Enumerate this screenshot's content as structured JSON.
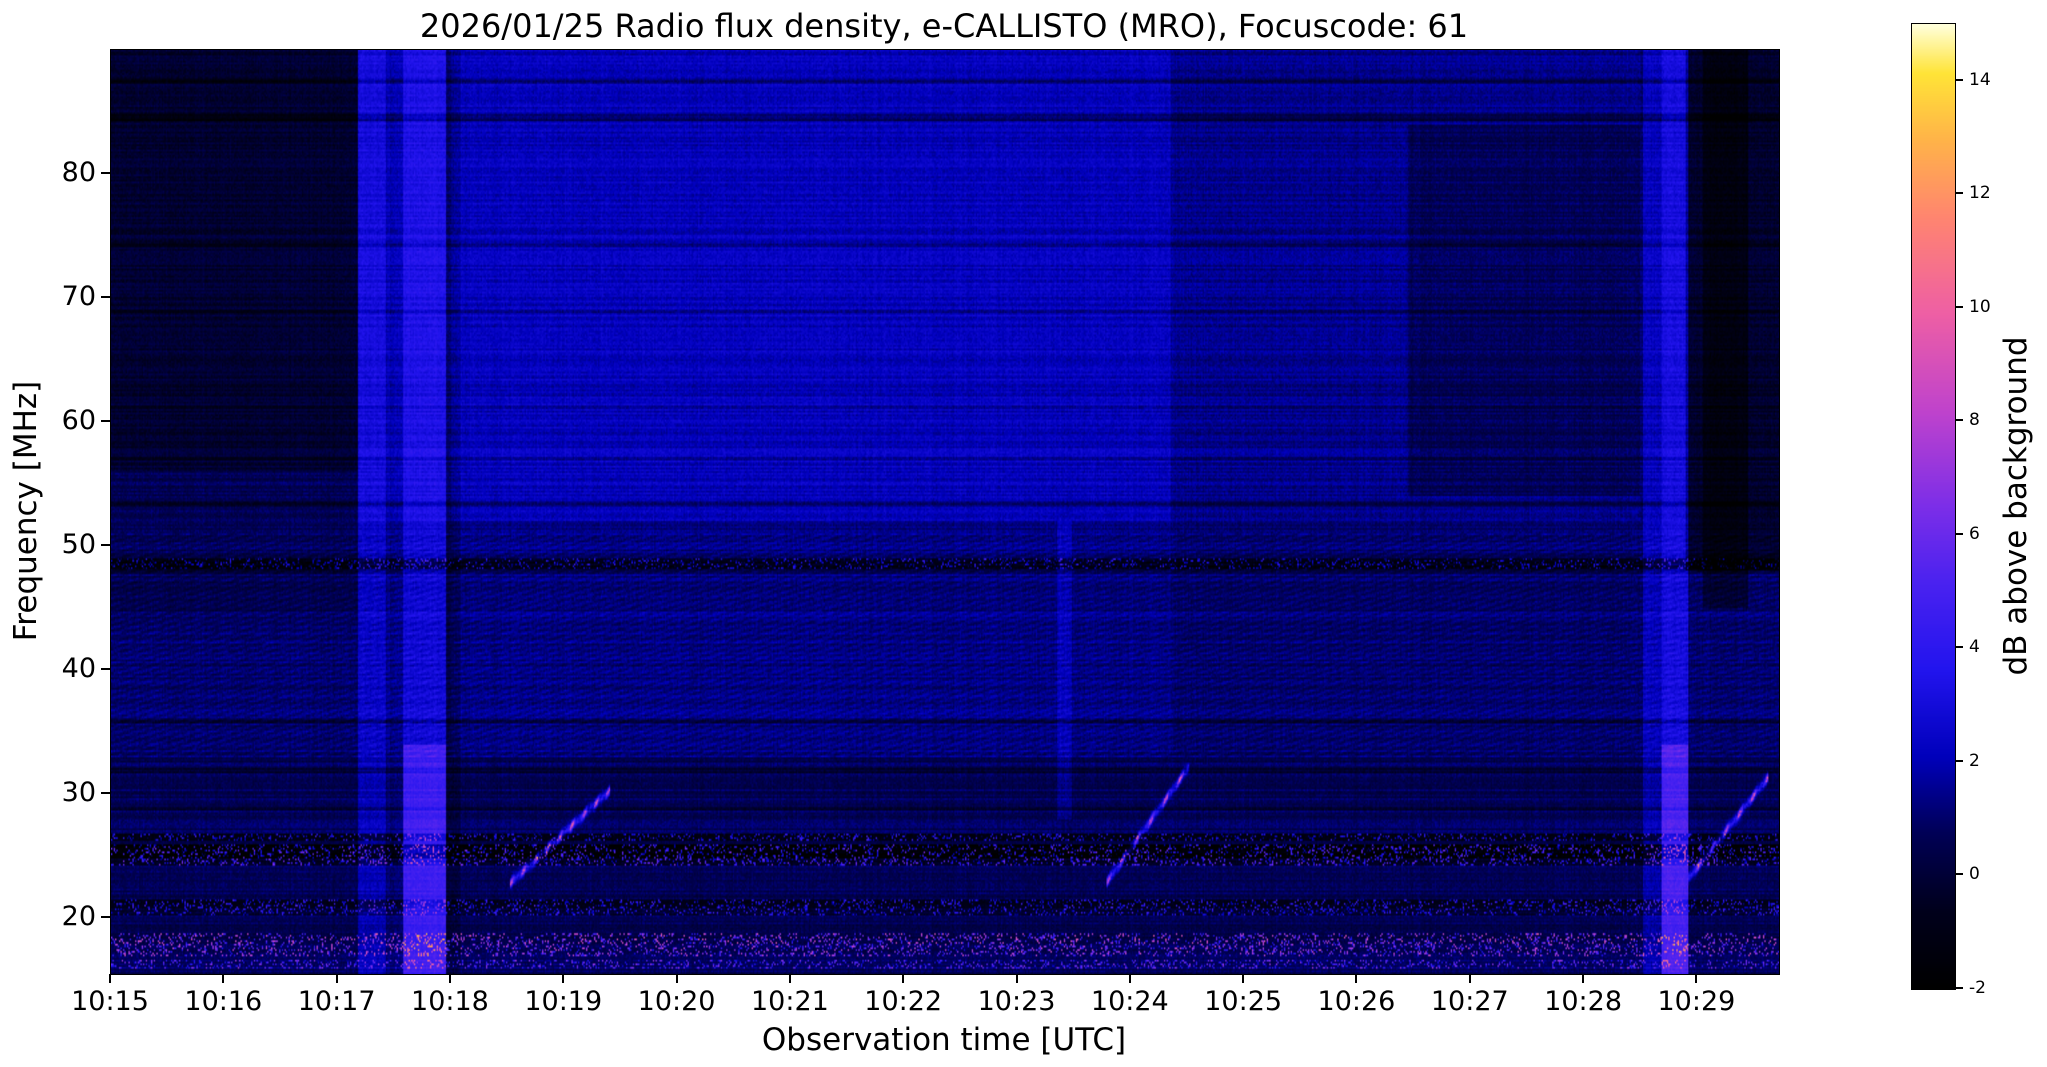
{
  "chart_data": {
    "type": "heatmap",
    "title": "2026/01/25  Radio flux density, e-CALLISTO (MRO), Focuscode: 61",
    "xlabel": "Observation time [UTC]",
    "ylabel": "Frequency [MHz]",
    "colorbar_label": "dB above background",
    "x_tick_labels": [
      "10:15",
      "10:16",
      "10:17",
      "10:18",
      "10:19",
      "10:20",
      "10:21",
      "10:22",
      "10:23",
      "10:24",
      "10:25",
      "10:26",
      "10:27",
      "10:28",
      "10:29"
    ],
    "y_tick_values": [
      80,
      70,
      60,
      50,
      40,
      30,
      20
    ],
    "colorbar_ticks": [
      14,
      12,
      10,
      8,
      6,
      4,
      2,
      0,
      -2
    ],
    "x_span_minutes": 14.72,
    "ylim": [
      15.5,
      90
    ],
    "value_range": [
      -2,
      15
    ],
    "base_level_db": 1.0,
    "colormap_stops": [
      [
        0.0,
        "#000000"
      ],
      [
        0.08,
        "#00001c"
      ],
      [
        0.16,
        "#000055"
      ],
      [
        0.24,
        "#0000bb"
      ],
      [
        0.33,
        "#2214ee"
      ],
      [
        0.42,
        "#4a22f0"
      ],
      [
        0.5,
        "#7c2ee8"
      ],
      [
        0.6,
        "#c043cc"
      ],
      [
        0.7,
        "#ee5fa5"
      ],
      [
        0.8,
        "#ff8570"
      ],
      [
        0.88,
        "#ffb349"
      ],
      [
        0.95,
        "#ffe437"
      ],
      [
        1.0,
        "#ffffd9"
      ]
    ],
    "regions": [
      {
        "t": [
          0,
          2.18
        ],
        "f": [
          56,
          90
        ],
        "dv": -1.15
      },
      {
        "t": [
          0,
          2.18
        ],
        "f": [
          44,
          56
        ],
        "dv": -0.35
      },
      {
        "t": [
          2.18,
          3.0
        ],
        "f": [
          52,
          90
        ],
        "dv": 0.6
      },
      {
        "t": [
          3.0,
          9.35
        ],
        "f": [
          52,
          90
        ],
        "dv": 1.15
      },
      {
        "t": [
          3.0,
          9.35
        ],
        "f": [
          33,
          52
        ],
        "dv": 0.3
      },
      {
        "t": [
          9.35,
          13.5
        ],
        "f": [
          52,
          90
        ],
        "dv": 0.45
      },
      {
        "t": [
          11.45,
          13.5
        ],
        "f": [
          54,
          84
        ],
        "dv": -0.75
      },
      {
        "t": [
          13.9,
          14.72
        ],
        "f": [
          48,
          90
        ],
        "dv": -1.25
      },
      {
        "t": [
          0,
          14.72
        ],
        "f": [
          15.5,
          33
        ],
        "dv": -0.3
      }
    ],
    "hlines": [
      {
        "f": 48.6,
        "w": 0.45,
        "dv": -2.2,
        "speckle": 5
      },
      {
        "f": 47.9,
        "w": 0.2,
        "dv": -1.0
      },
      {
        "f": 26.5,
        "w": 0.3,
        "dv": -1.8,
        "speckle": 6
      },
      {
        "f": 25.4,
        "w": 0.55,
        "dv": -2.6,
        "speckle": 8
      },
      {
        "f": 24.5,
        "w": 0.3,
        "dv": -1.2,
        "speckle": 7
      },
      {
        "f": 21.2,
        "w": 0.35,
        "dv": -1.6,
        "speckle": 6
      },
      {
        "f": 20.5,
        "w": 0.3,
        "dv": -1.0,
        "speckle": 5
      },
      {
        "f": 18.4,
        "w": 0.45,
        "dv": -0.3,
        "speckle": 9
      },
      {
        "f": 17.5,
        "w": 0.5,
        "dv": -0.2,
        "speckle": 8
      },
      {
        "f": 16.3,
        "w": 0.4,
        "dv": 0.3,
        "speckle": 6
      },
      {
        "f": 87.5,
        "w": 0.25,
        "dv": -1.0
      },
      {
        "f": 84.6,
        "w": 0.3,
        "dv": -1.3
      },
      {
        "f": 74.3,
        "w": 0.15,
        "dv": -0.6
      },
      {
        "f": 68.9,
        "w": 0.15,
        "dv": -0.6
      },
      {
        "f": 61.2,
        "w": 0.15,
        "dv": -0.7
      },
      {
        "f": 57.1,
        "w": 0.15,
        "dv": -1.1
      },
      {
        "f": 53.4,
        "w": 0.15,
        "dv": -0.9
      },
      {
        "f": 35.9,
        "w": 0.18,
        "dv": -0.8
      },
      {
        "f": 31.9,
        "w": 0.18,
        "dv": -0.9
      },
      {
        "f": 28.8,
        "w": 0.18,
        "dv": -0.8
      }
    ],
    "vbands": [
      {
        "t": [
          2.18,
          2.42
        ],
        "dv": 1.4
      },
      {
        "t": [
          2.42,
          2.58
        ],
        "dv": 0.4
      },
      {
        "t": [
          2.58,
          2.95
        ],
        "dv": 1.8,
        "low_boost": 2.2
      },
      {
        "t": [
          2.95,
          3.08
        ],
        "dv": -0.6
      },
      {
        "t": [
          8.35,
          8.48
        ],
        "dv": 0.9,
        "f": [
          28,
          52
        ]
      },
      {
        "t": [
          13.52,
          13.68
        ],
        "dv": 1.2
      },
      {
        "t": [
          13.68,
          13.92
        ],
        "dv": 2.0,
        "low_boost": 2.4
      },
      {
        "t": [
          14.05,
          14.45
        ],
        "dv": -1.0,
        "f": [
          45,
          90
        ]
      }
    ],
    "drift_bursts": [
      {
        "t": [
          3.52,
          4.4
        ],
        "f": [
          22.8,
          30.3
        ],
        "w": 0.5,
        "dv": 10
      },
      {
        "t": [
          8.78,
          9.52
        ],
        "f": [
          22.8,
          32.3
        ],
        "w": 0.5,
        "dv": 10
      },
      {
        "t": [
          13.92,
          14.62
        ],
        "f": [
          23.2,
          31.3
        ],
        "w": 0.5,
        "dv": 10
      }
    ],
    "noise": {
      "pixel": 0.8,
      "row_stripe": 0.9,
      "col_stripe": 0.35,
      "speckle_prob": 0.2,
      "herringbone_band": [
        33,
        51
      ],
      "herringbone_amp": 0.35
    }
  }
}
